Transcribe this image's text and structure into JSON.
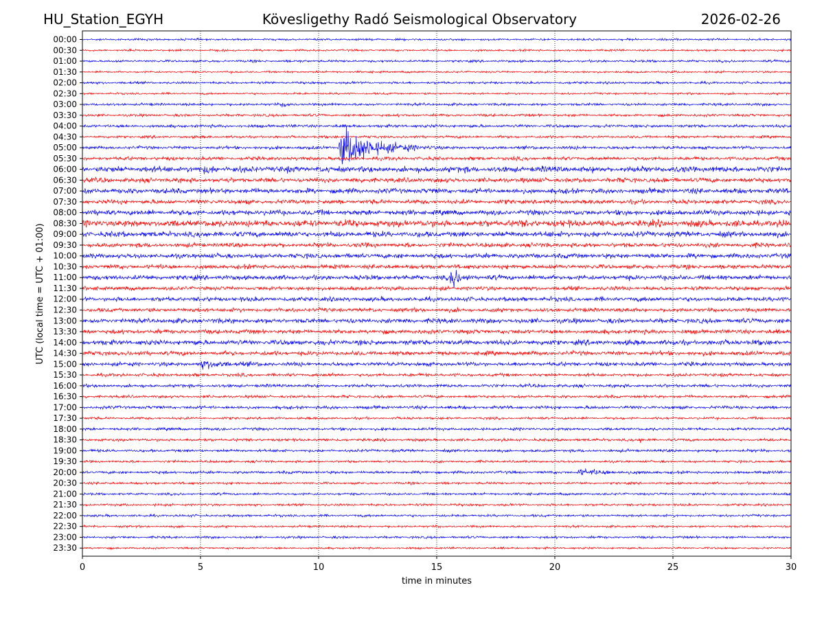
{
  "chart_data": {
    "type": "line",
    "station": "HU_Station_EGYH",
    "title": "Kövesligethy Radó Seismological Observatory",
    "date": "2026-02-26",
    "xlabel": "time in minutes",
    "ylabel": "UTC (local time = UTC + 01:00)",
    "xlim": [
      0,
      30
    ],
    "xticks": [
      "0",
      "5",
      "10",
      "15",
      "20",
      "25",
      "30"
    ],
    "grid": "vertical dotted at x ticks",
    "row_labels": [
      "00:00",
      "00:30",
      "01:00",
      "01:30",
      "02:00",
      "02:30",
      "03:00",
      "03:30",
      "04:00",
      "04:30",
      "05:00",
      "05:30",
      "06:00",
      "06:30",
      "07:00",
      "07:30",
      "08:00",
      "08:30",
      "09:00",
      "09:30",
      "10:00",
      "10:30",
      "11:00",
      "11:30",
      "12:00",
      "12:30",
      "13:00",
      "13:30",
      "14:00",
      "14:30",
      "15:00",
      "15:30",
      "16:00",
      "16:30",
      "17:00",
      "17:30",
      "18:00",
      "18:30",
      "19:00",
      "19:30",
      "20:00",
      "20:30",
      "21:00",
      "21:30",
      "22:00",
      "22:30",
      "23:00",
      "23:30"
    ],
    "trace_colors": [
      "#0000ff",
      "#ff0000"
    ],
    "noise_level": [
      1.0,
      1.0,
      1.2,
      1.0,
      1.2,
      1.0,
      1.3,
      1.3,
      1.5,
      1.3,
      1.6,
      1.8,
      3.0,
      2.4,
      2.6,
      2.2,
      2.6,
      3.4,
      2.8,
      2.2,
      2.4,
      2.2,
      2.4,
      2.0,
      2.2,
      2.0,
      2.4,
      2.2,
      2.6,
      2.2,
      2.0,
      1.6,
      1.6,
      1.4,
      1.6,
      1.2,
      1.4,
      1.4,
      1.4,
      1.2,
      1.4,
      1.2,
      1.2,
      1.2,
      1.2,
      1.1,
      1.2,
      1.0
    ],
    "events": [
      {
        "row": "03:00",
        "minute": 8.5,
        "amplitude": 5,
        "duration_min": 0.5
      },
      {
        "row": "05:00",
        "minute": 10.9,
        "amplitude": 26,
        "duration_min": 4.0
      },
      {
        "row": "11:00",
        "minute": 15.6,
        "amplitude": 15,
        "duration_min": 1.0
      },
      {
        "row": "15:00",
        "minute": 5.0,
        "amplitude": 4,
        "duration_min": 3.0
      },
      {
        "row": "20:00",
        "minute": 21.0,
        "amplitude": 3,
        "duration_min": 4.0
      },
      {
        "row": "18:30",
        "minute": 23.6,
        "amplitude": 3,
        "duration_min": 0.3
      },
      {
        "row": "06:00",
        "minute": 5.2,
        "amplitude": 4,
        "duration_min": 1.0
      }
    ]
  }
}
